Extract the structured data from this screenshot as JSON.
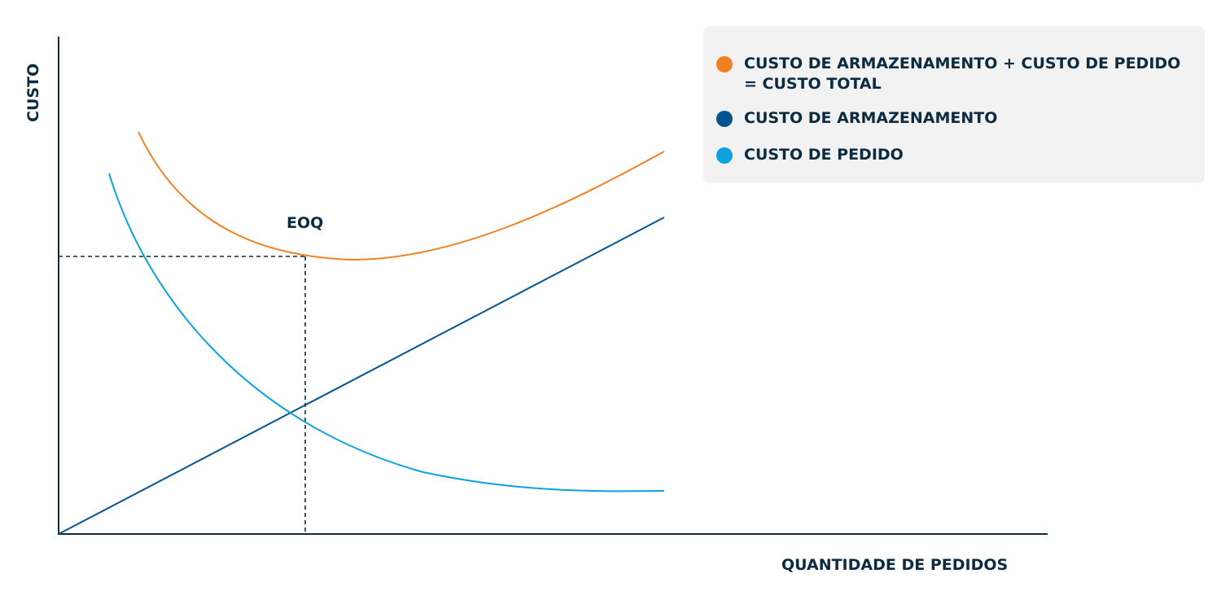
{
  "axes": {
    "y_label": "CUSTO",
    "x_label": "QUANTIDADE DE PEDIDOS"
  },
  "annotation": "EOQ",
  "legend": [
    {
      "line1": "CUSTO DE ARMAZENAMENTO + CUSTO DE PEDIDO",
      "line2": "= CUSTO TOTAL",
      "color": "#f08122"
    },
    {
      "line1": "CUSTO DE ARMAZENAMENTO",
      "color": "#04558f"
    },
    {
      "line1": "CUSTO DE PEDIDO",
      "color": "#0ea1e0"
    }
  ],
  "colors": {
    "axis": "#0d2b40",
    "total": "#f08122",
    "storage": "#04558f",
    "order": "#0ea1e0"
  }
}
